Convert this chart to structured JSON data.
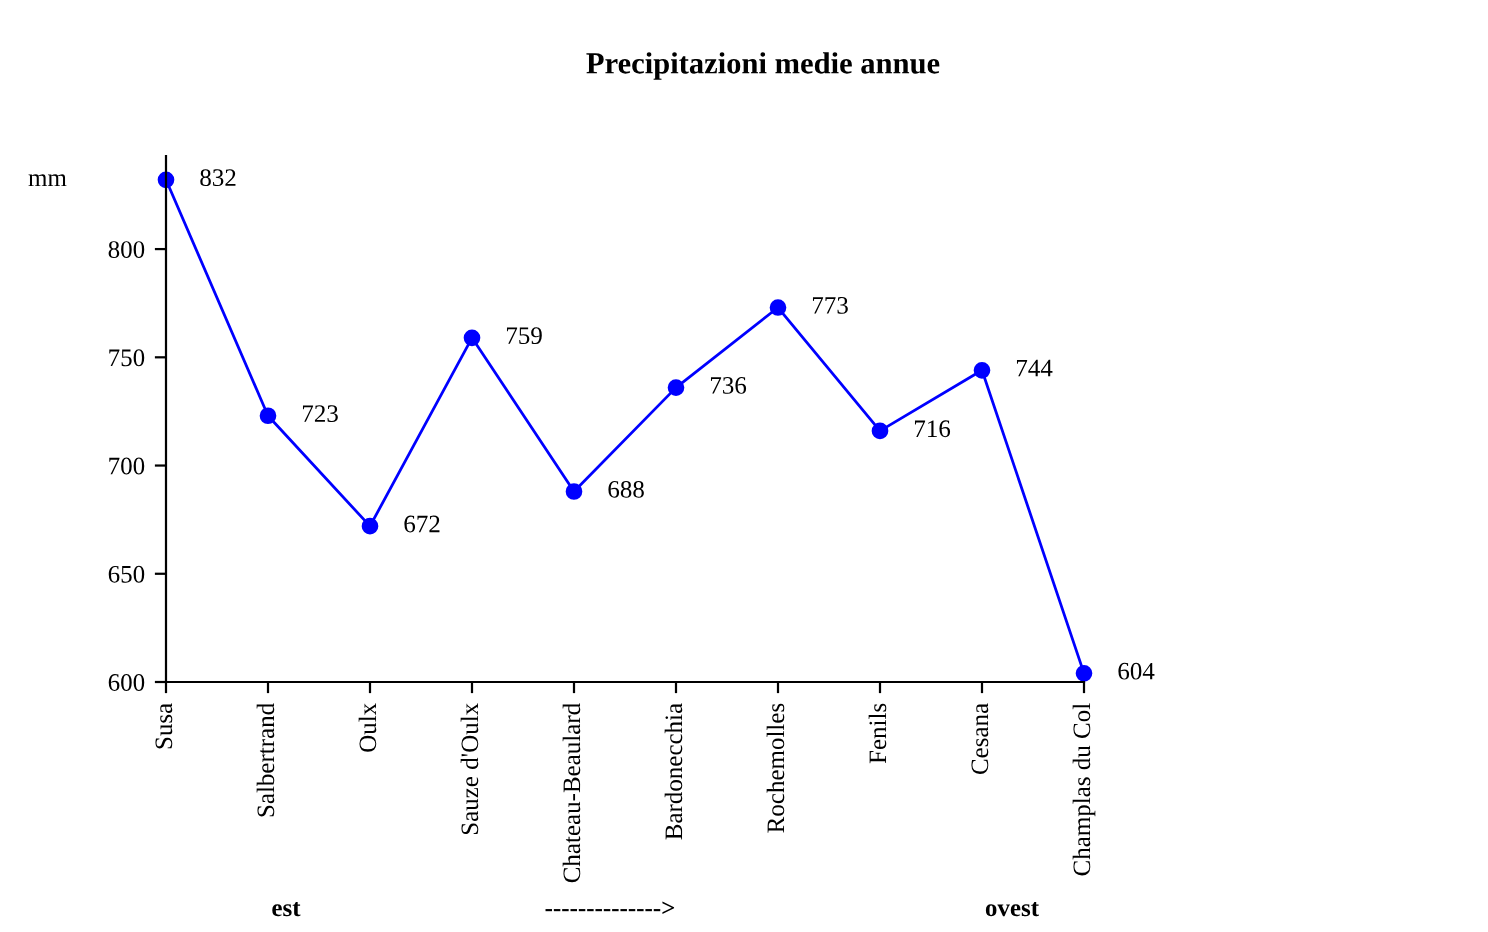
{
  "chart_data": {
    "type": "line",
    "title": "Precipitazioni medie annue",
    "ylabel": "mm",
    "categories": [
      "Susa",
      "Salbertrand",
      "Oulx",
      "Sauze d'Oulx",
      "Chateau-Beaulard",
      "Bardonecchia",
      "Rochemolles",
      "Fenils",
      "Cesana",
      "Champlas du Col"
    ],
    "series": [
      {
        "color": "#0000ff",
        "values": [
          832,
          723,
          672,
          759,
          688,
          736,
          773,
          716,
          744,
          604
        ]
      }
    ],
    "ylim": [
      600,
      843
    ],
    "yticks": [
      600,
      650,
      700,
      750,
      800
    ],
    "marker": "circle",
    "line_style": "solid",
    "data_labels": true,
    "grid": false,
    "annotations": [
      "est",
      "-------------->",
      "ovest"
    ]
  }
}
